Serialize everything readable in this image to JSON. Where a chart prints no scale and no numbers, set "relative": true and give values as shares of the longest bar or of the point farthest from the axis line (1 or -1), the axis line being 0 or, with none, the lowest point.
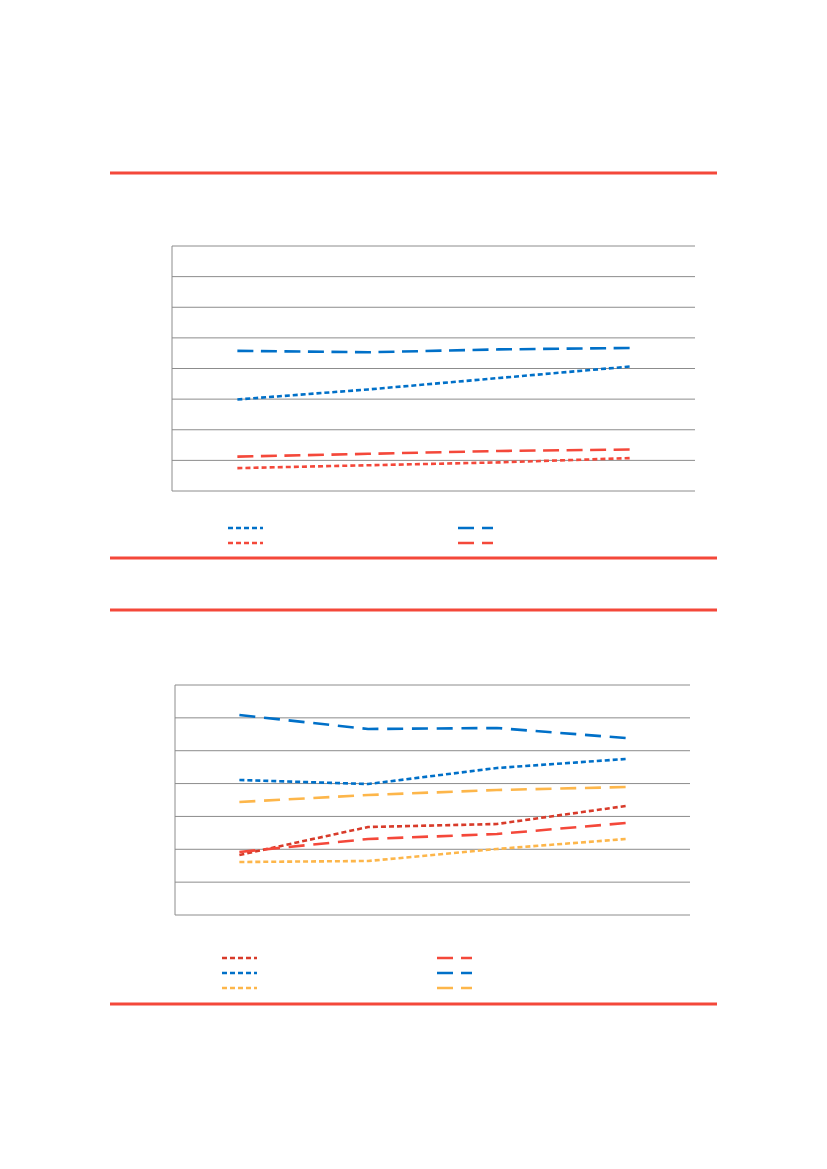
{
  "chart_data": [
    {
      "type": "line",
      "relative": true,
      "categories": [
        null,
        null,
        null,
        null
      ],
      "grid": true,
      "series": [
        {
          "color": "#0070c8",
          "line_style": "dotted",
          "values": [
            0.64,
            0.71,
            0.79,
            0.87
          ]
        },
        {
          "color": "#f4483a",
          "line_style": "dotted",
          "values": [
            0.16,
            0.18,
            0.2,
            0.23
          ]
        },
        {
          "color": "#0070c8",
          "line_style": "dashed",
          "values": [
            0.98,
            0.97,
            0.99,
            1
          ]
        },
        {
          "color": "#f4483a",
          "line_style": "dashed",
          "values": [
            0.24,
            0.26,
            0.28,
            0.29
          ]
        }
      ]
    },
    {
      "type": "line",
      "relative": true,
      "categories": [
        null,
        null,
        null,
        null
      ],
      "grid": true,
      "series": [
        {
          "color": "#d83b2a",
          "line_style": "dotted",
          "values": [
            0.3,
            0.44,
            0.455,
            0.545
          ]
        },
        {
          "color": "#0070c8",
          "line_style": "dotted",
          "values": [
            0.675,
            0.655,
            0.735,
            0.78
          ]
        },
        {
          "color": "#fdb64a",
          "line_style": "dotted",
          "values": [
            0.265,
            0.27,
            0.33,
            0.38
          ]
        },
        {
          "color": "#f4483a",
          "line_style": "dashed",
          "values": [
            0.315,
            0.38,
            0.405,
            0.46
          ]
        },
        {
          "color": "#0070c8",
          "line_style": "dashed",
          "values": [
            1,
            0.93,
            0.935,
            0.885
          ]
        },
        {
          "color": "#fdb64a",
          "line_style": "dashed",
          "values": [
            0.565,
            0.6,
            0.625,
            0.64
          ]
        }
      ]
    }
  ]
}
